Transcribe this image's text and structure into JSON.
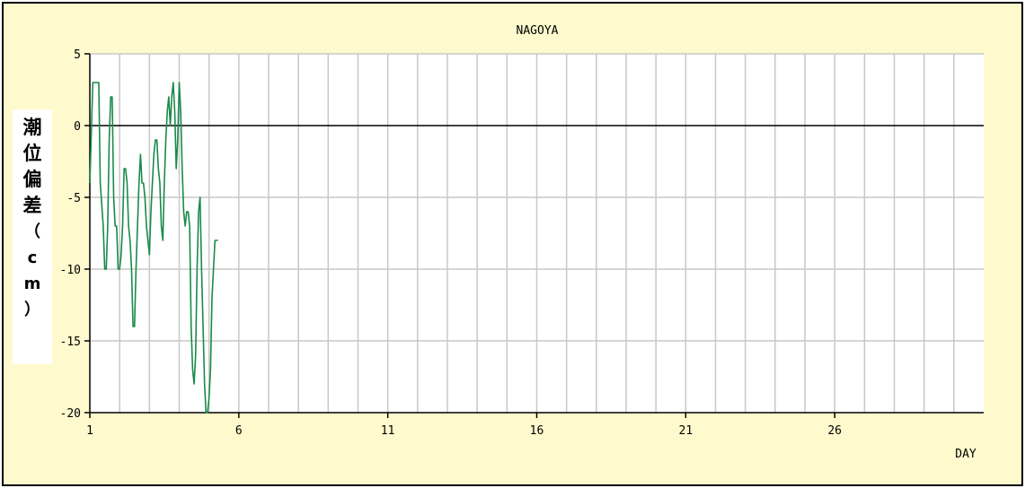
{
  "chart_data": {
    "type": "line",
    "title": "NAGOYA",
    "xlabel": "DAY",
    "ylabel": "潮位偏差（cm）",
    "xlim": [
      1,
      31
    ],
    "ylim": [
      -20,
      5
    ],
    "xticks": [
      1,
      6,
      11,
      16,
      21,
      26
    ],
    "yticks": [
      5,
      0,
      -5,
      -10,
      -15,
      -20
    ],
    "grid": true,
    "zero_line": true,
    "series": [
      {
        "color": "#1a8a4a",
        "x": [
          1.0,
          1.1,
          1.2,
          1.3,
          1.35,
          1.45,
          1.5,
          1.55,
          1.6,
          1.65,
          1.7,
          1.75,
          1.8,
          1.85,
          1.9,
          1.95,
          2.0,
          2.05,
          2.1,
          2.15,
          2.2,
          2.25,
          2.3,
          2.35,
          2.4,
          2.45,
          2.5,
          2.55,
          2.6,
          2.65,
          2.7,
          2.75,
          2.8,
          2.85,
          2.9,
          2.95,
          3.0,
          3.05,
          3.1,
          3.15,
          3.2,
          3.25,
          3.3,
          3.35,
          3.4,
          3.45,
          3.5,
          3.55,
          3.6,
          3.65,
          3.7,
          3.75,
          3.8,
          3.85,
          3.9,
          3.95,
          4.0,
          4.05,
          4.1,
          4.15,
          4.2,
          4.25,
          4.3,
          4.35,
          4.4,
          4.45,
          4.5,
          4.55,
          4.6,
          4.65,
          4.7,
          4.75,
          4.8,
          4.85,
          4.9,
          4.95,
          5.0,
          5.05,
          5.1,
          5.15,
          5.2,
          5.25,
          5.3
        ],
        "y": [
          -4,
          3,
          3,
          3,
          -4,
          -7,
          -10,
          -10,
          -7,
          -1,
          2,
          2,
          -5,
          -7,
          -7,
          -10,
          -10,
          -9,
          -7,
          -3,
          -3,
          -4,
          -7,
          -8,
          -10,
          -14,
          -14,
          -10,
          -7,
          -4,
          -2,
          -4,
          -4,
          -5,
          -7,
          -8,
          -9,
          -6,
          -4,
          -2,
          -1,
          -1,
          -3,
          -4,
          -7,
          -8,
          -4,
          -1,
          1,
          2,
          0,
          2,
          3,
          1,
          -3,
          -1,
          3,
          1,
          -3,
          -6,
          -7,
          -6,
          -6,
          -7,
          -14,
          -17,
          -18,
          -16,
          -10,
          -6,
          -5,
          -10,
          -14,
          -18,
          -20,
          -20,
          -19,
          -17,
          -12,
          -10,
          -8,
          -8,
          -8
        ]
      }
    ]
  }
}
